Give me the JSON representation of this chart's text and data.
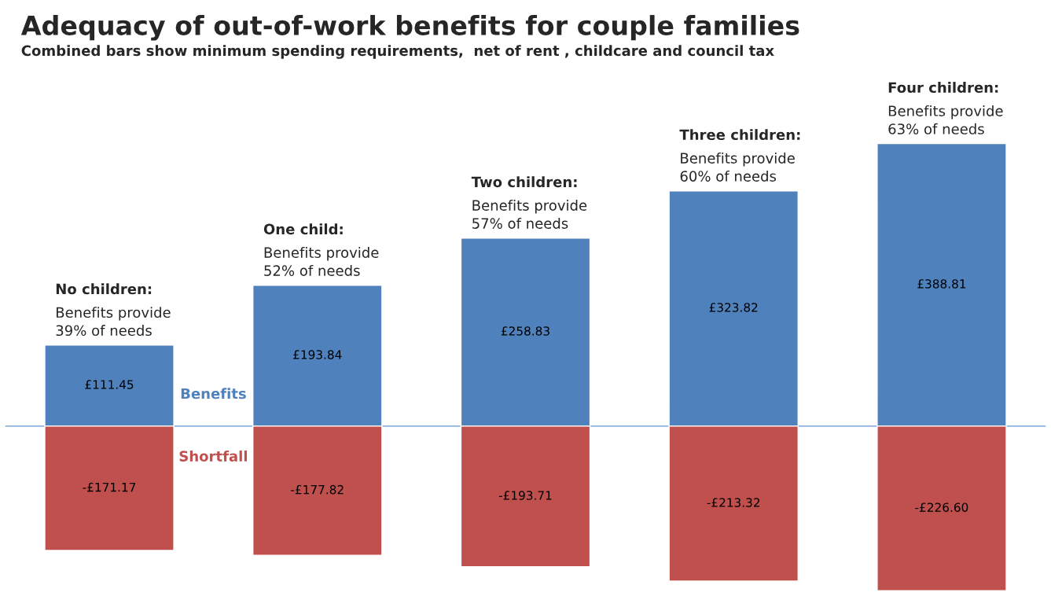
{
  "chart_data": {
    "type": "bar",
    "stacked": true,
    "ref_lines": [
      {
        "axis": "y",
        "value": 0,
        "color": "#8eb4e3"
      }
    ],
    "title": "Adequacy of out-of-work benefits for couple families",
    "subtitle": "Combined bars show minimum spending requirements,  net of rent , childcare and council tax",
    "categories": [
      null,
      null,
      null,
      null,
      null
    ],
    "series": [
      {
        "name": "Benefits",
        "color": "#4f81bd",
        "values": [
          111.45,
          193.84,
          258.83,
          323.82,
          388.81
        ],
        "value_labels": [
          "£111.45",
          "£193.84",
          "£258.83",
          "£323.82",
          "£388.81"
        ]
      },
      {
        "name": "Shortfall",
        "color": "#c0504d",
        "values": [
          -171.17,
          -177.82,
          -193.71,
          -213.32,
          -226.6
        ],
        "value_labels": [
          "-£171.17",
          "-£177.82",
          "-£193.71",
          "-£213.32",
          "-£226.60"
        ]
      }
    ],
    "annotations": [
      "No children:",
      "Benefits provide\n39% of needs",
      "One child:",
      "Benefits provide\n52% of needs",
      "Two children:",
      "Benefits provide\n57% of needs",
      "Three children:",
      "Benefits provide\n60% of needs",
      "Four children:",
      "Benefits provide\n63% of needs"
    ]
  }
}
